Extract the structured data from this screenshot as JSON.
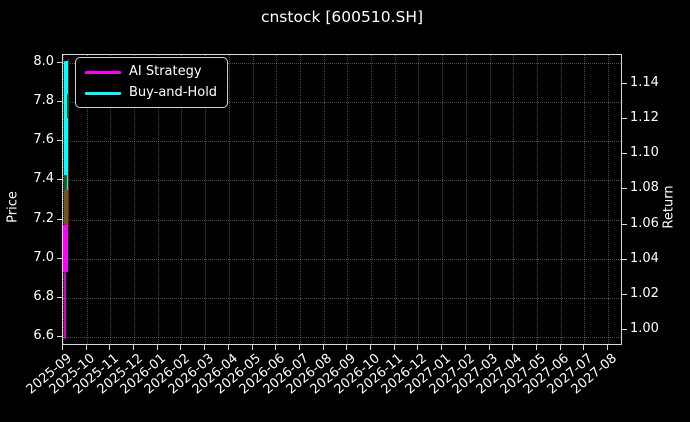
{
  "title": "cnstock [600510.SH]",
  "chart_data": {
    "type": "line",
    "title": "cnstock [600510.SH]",
    "background": "#000000",
    "grid": {
      "visible": true,
      "style": "dotted",
      "color": "rgba(255,255,255,0.30)"
    },
    "axes": {
      "left": {
        "label": "Price",
        "ticks": [
          "8.0",
          "7.8",
          "7.6",
          "7.4",
          "7.2",
          "7.0",
          "6.8",
          "6.6"
        ],
        "range": [
          6.53,
          8.04
        ]
      },
      "right": {
        "label": "Return",
        "ticks": [
          "1.14",
          "1.12",
          "1.10",
          "1.08",
          "1.06",
          "1.04",
          "1.02",
          "1.00"
        ]
      },
      "x": {
        "ticks": [
          "2025-09",
          "2025-10",
          "2025-11",
          "2025-12",
          "2026-01",
          "2026-02",
          "2026-03",
          "2026-04",
          "2026-05",
          "2026-06",
          "2026-07",
          "2026-08",
          "2026-09",
          "2026-10",
          "2026-11",
          "2026-12",
          "2027-01",
          "2027-02",
          "2027-03",
          "2027-04",
          "2027-05",
          "2027-06",
          "2027-07",
          "2027-08"
        ]
      }
    },
    "legend": {
      "position": "upper-left",
      "items": [
        {
          "label": "AI Strategy",
          "color": "#ff00ff"
        },
        {
          "label": "Buy-and-Hold",
          "color": "#00ffff"
        }
      ]
    },
    "series": [
      {
        "name": "AI Strategy",
        "color": "#ff00ff",
        "visible_x_extent": "2025-09",
        "visible_price_extent": [
          6.59,
          7.17
        ]
      },
      {
        "name": "Buy-and-Hold",
        "color": "#00ffff",
        "visible_x_extent": "2025-09",
        "visible_price_extent": [
          7.35,
          8.01
        ]
      }
    ],
    "render_segments": [
      {
        "name": "dark-red-trace",
        "color": "#8b1212",
        "x_offset": 4.0,
        "width": 1.6,
        "price_from": 8.02,
        "price_to": 7.16
      },
      {
        "name": "buy-and-hold-line",
        "color": "#00ffff",
        "x_offset": 0.5,
        "width": 4.0,
        "price_from": 8.01,
        "price_to": 7.35
      },
      {
        "name": "overlap-green-upper",
        "color": "#174f17",
        "x_offset": 3.5,
        "width": 2.0,
        "price_from": 7.84,
        "price_to": 7.72
      },
      {
        "name": "overlap-green-lower",
        "color": "#1d5a1d",
        "x_offset": 0.5,
        "width": 3.0,
        "price_from": 7.43,
        "price_to": 7.35
      },
      {
        "name": "overlap-olive",
        "color": "#6e571f",
        "x_offset": 0.5,
        "width": 4.0,
        "price_from": 7.35,
        "price_to": 7.17
      },
      {
        "name": "ai-strategy-line",
        "color": "#ff00ff",
        "x_offset": 0.2,
        "width": 4.5,
        "price_from": 7.17,
        "price_to": 6.93
      },
      {
        "name": "ai-strategy-tail",
        "color": "#d400d4",
        "x_offset": 1.2,
        "width": 1.6,
        "price_from": 6.93,
        "price_to": 6.59
      }
    ]
  }
}
